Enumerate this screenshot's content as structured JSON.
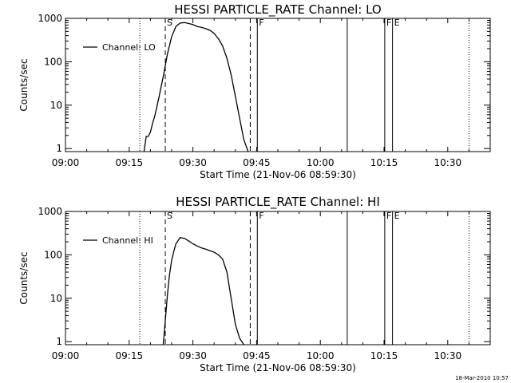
{
  "chart_data": [
    {
      "type": "line",
      "title": "HESSI PARTICLE_RATE Channel: LO",
      "xlabel": "Start Time (21-Nov-06 08:59:30)",
      "ylabel": "Counts/sec",
      "yscale": "log",
      "xlim": [
        "09:00",
        "10:40"
      ],
      "ylim": [
        0.85,
        1000
      ],
      "x_ticks": [
        "09:00",
        "09:15",
        "09:30",
        "09:45",
        "10:00",
        "10:15",
        "10:30"
      ],
      "y_ticks": [
        "1",
        "10",
        "100",
        "1000"
      ],
      "legend": "top-left",
      "series": [
        {
          "name": "Channel: LO",
          "x": [
            "09:18:30",
            "09:19:00",
            "09:19:30",
            "09:20:00",
            "09:20:30",
            "09:21:00",
            "09:21:30",
            "09:22:00",
            "09:22:30",
            "09:23:00",
            "09:24:00",
            "09:25:00",
            "09:26:00",
            "09:27:00",
            "09:28:00",
            "09:29:00",
            "09:30:00",
            "09:31:00",
            "09:32:00",
            "09:33:00",
            "09:34:00",
            "09:35:00",
            "09:36:00",
            "09:37:00",
            "09:38:00",
            "09:39:00",
            "09:40:00",
            "09:41:00",
            "09:42:00",
            "09:43:00"
          ],
          "y": [
            0.85,
            1.9,
            1.9,
            2.4,
            3.8,
            5.5,
            9,
            15,
            26,
            45,
            150,
            380,
            650,
            780,
            800,
            760,
            720,
            650,
            620,
            580,
            530,
            450,
            340,
            230,
            120,
            50,
            16,
            5,
            1.6,
            0.85
          ]
        }
      ],
      "vlines": [
        {
          "time": "09:17:30",
          "style": "dotted"
        },
        {
          "time": "09:23:30",
          "style": "dashed",
          "label": "S"
        },
        {
          "time": "09:43:30",
          "style": "dashed"
        },
        {
          "time": "09:45:10",
          "style": "solid",
          "label": "F"
        },
        {
          "time": "10:06:20",
          "style": "solid"
        },
        {
          "time": "10:15:10",
          "style": "solid",
          "label": "F"
        },
        {
          "time": "10:17:00",
          "style": "solid",
          "label": "E"
        },
        {
          "time": "10:35:00",
          "style": "dotted"
        }
      ]
    },
    {
      "type": "line",
      "title": "HESSI PARTICLE_RATE Channel: HI",
      "xlabel": "Start Time (21-Nov-06 08:59:30)",
      "ylabel": "Counts/sec",
      "yscale": "log",
      "xlim": [
        "09:00",
        "10:40"
      ],
      "ylim": [
        0.85,
        1000
      ],
      "x_ticks": [
        "09:00",
        "09:15",
        "09:30",
        "09:45",
        "10:00",
        "10:15",
        "10:30"
      ],
      "y_ticks": [
        "1",
        "10",
        "100",
        "1000"
      ],
      "legend": "top-left",
      "series": [
        {
          "name": "Channel: HI",
          "x": [
            "09:23:00",
            "09:23:30",
            "09:24:00",
            "09:24:30",
            "09:25:00",
            "09:25:30",
            "09:26:00",
            "09:27:00",
            "09:28:00",
            "09:29:00",
            "09:30:00",
            "09:31:00",
            "09:32:00",
            "09:33:00",
            "09:34:00",
            "09:35:00",
            "09:36:00",
            "09:37:00",
            "09:38:00",
            "09:39:00",
            "09:40:00",
            "09:41:00",
            "09:42:00"
          ],
          "y": [
            0.85,
            3,
            12,
            35,
            75,
            120,
            180,
            250,
            240,
            210,
            180,
            160,
            145,
            135,
            125,
            115,
            100,
            80,
            40,
            10,
            2.5,
            1.2,
            0.85
          ]
        }
      ],
      "vlines": [
        {
          "time": "09:17:30",
          "style": "dotted"
        },
        {
          "time": "09:23:30",
          "style": "dashed",
          "label": "S"
        },
        {
          "time": "09:43:30",
          "style": "dashed"
        },
        {
          "time": "09:45:10",
          "style": "solid",
          "label": "F"
        },
        {
          "time": "10:06:20",
          "style": "solid"
        },
        {
          "time": "10:15:10",
          "style": "solid",
          "label": "F"
        },
        {
          "time": "10:17:00",
          "style": "solid",
          "label": "E"
        },
        {
          "time": "10:35:00",
          "style": "dotted"
        }
      ]
    }
  ],
  "footer": {
    "timestamp": "18-Mar-2010 10:57"
  }
}
